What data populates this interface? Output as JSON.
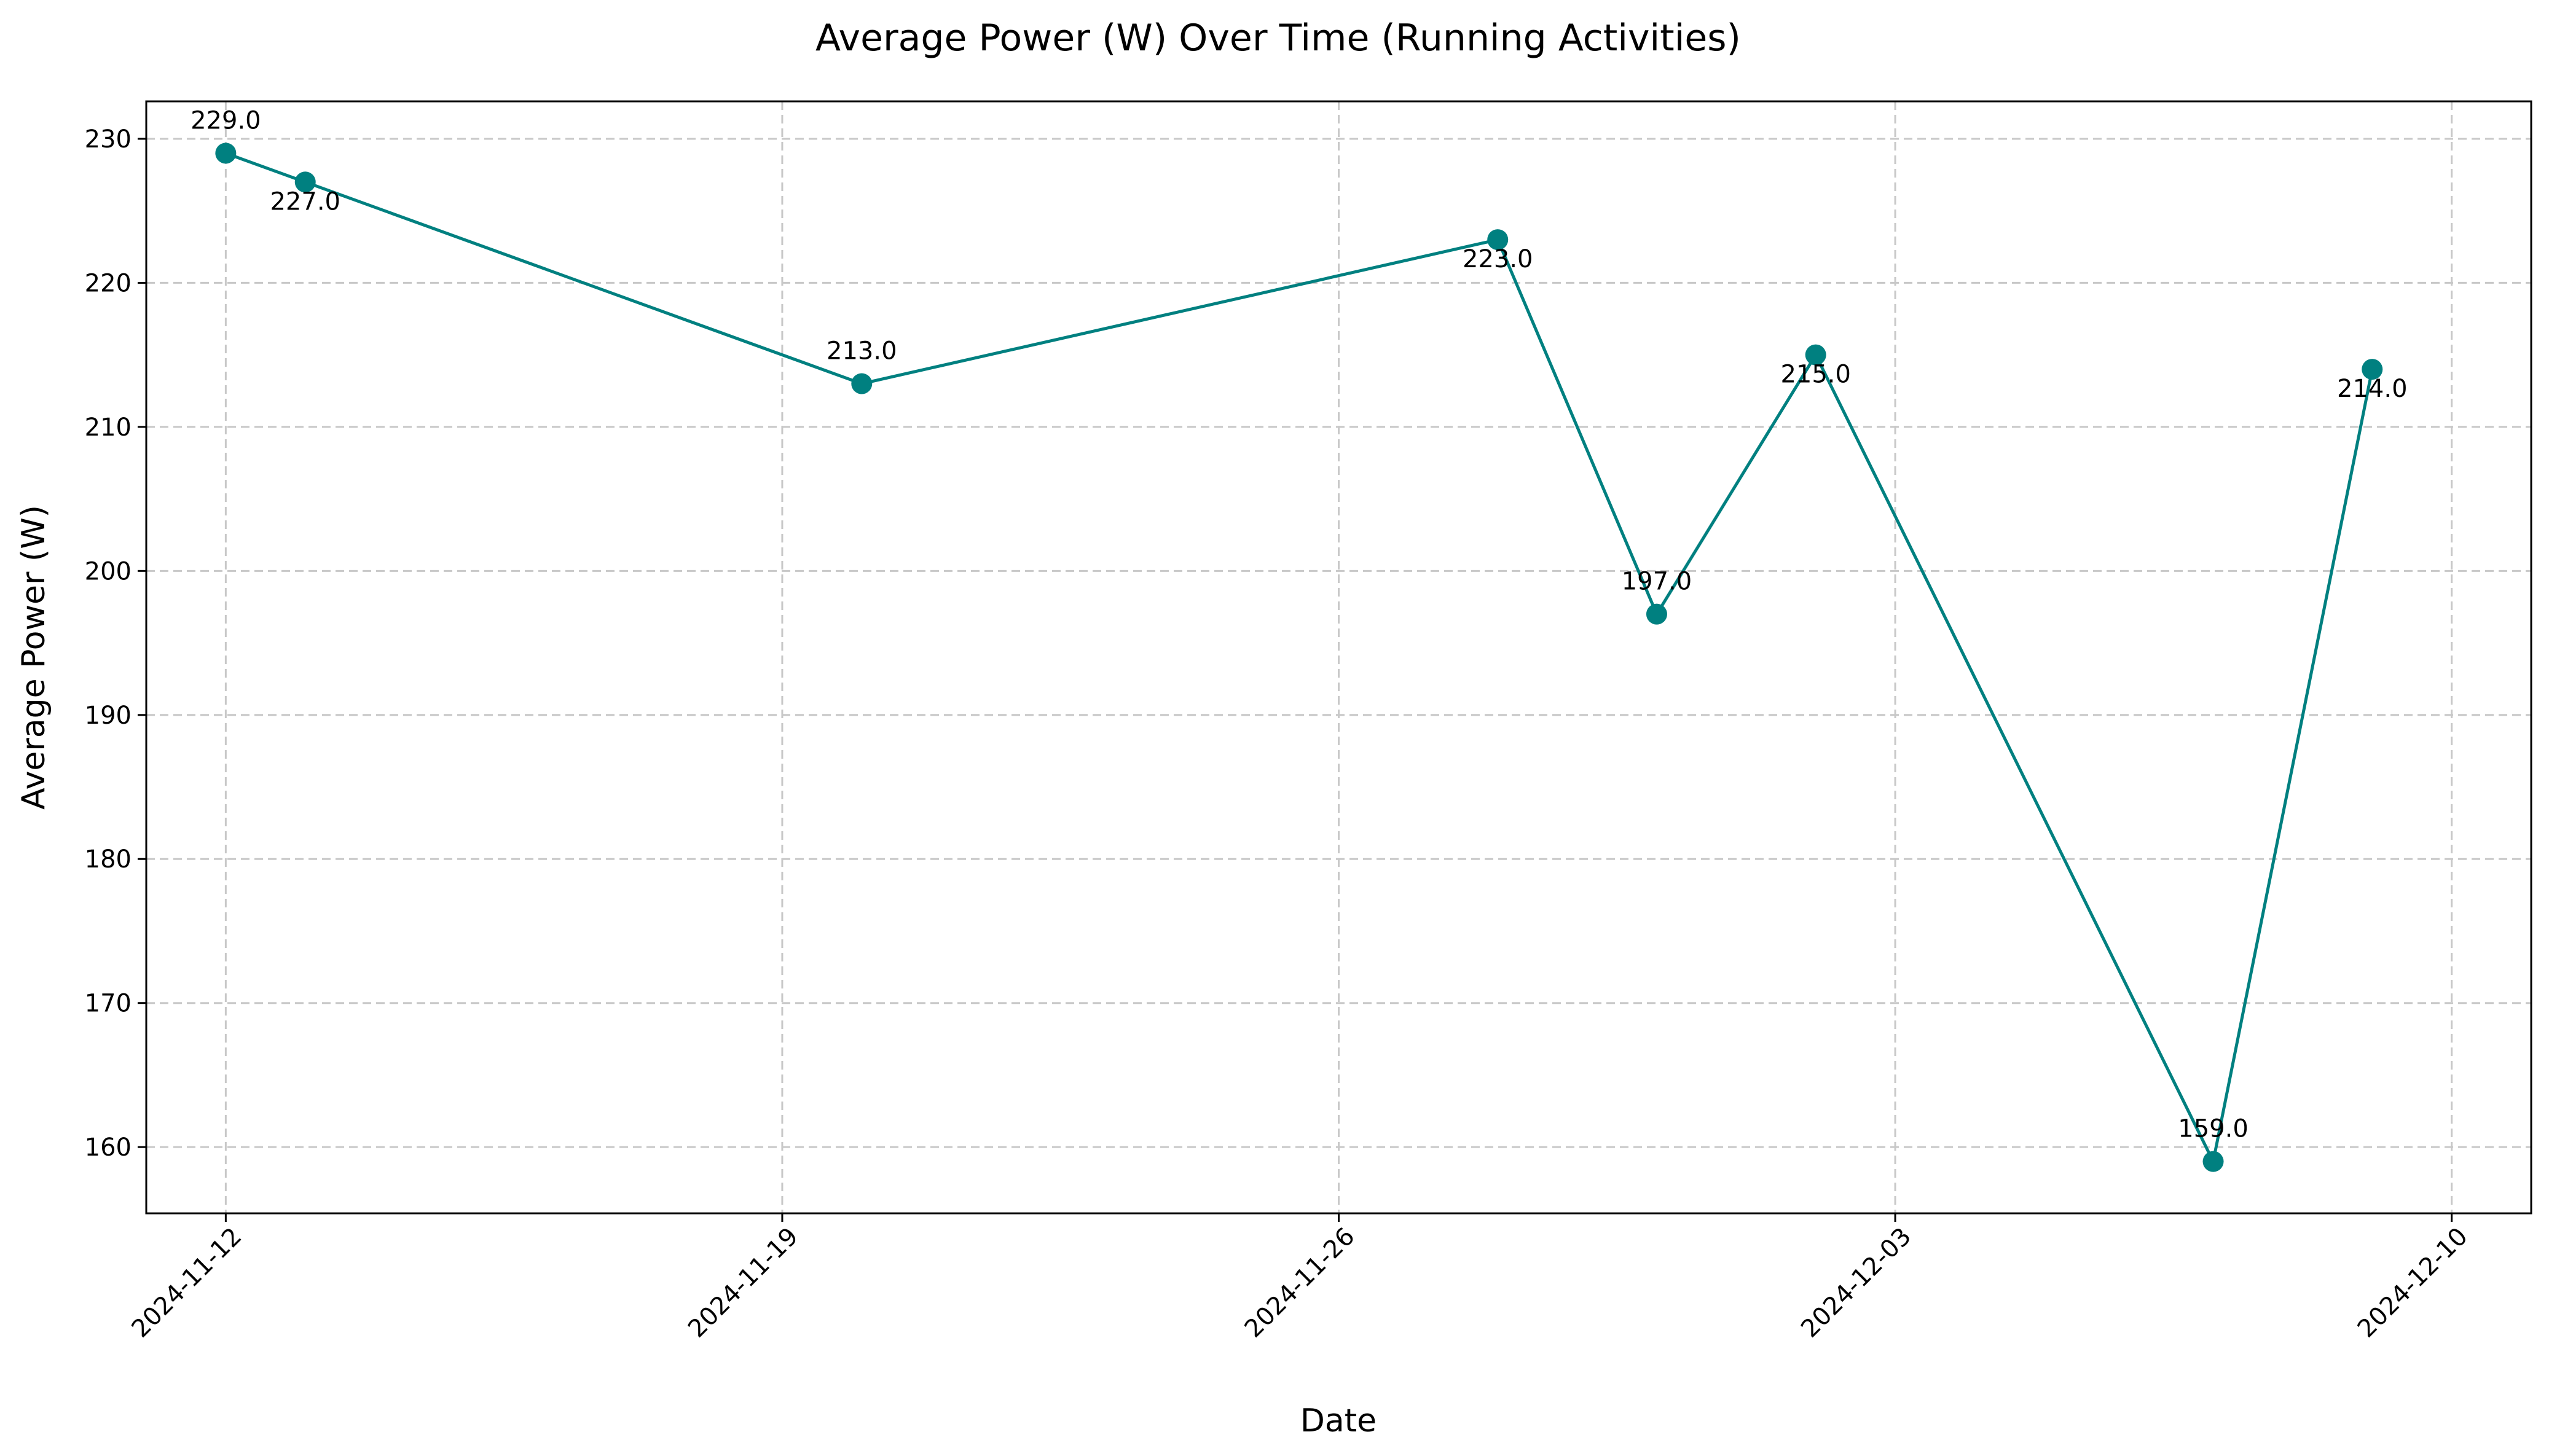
{
  "chart_data": {
    "type": "line",
    "title": "Average Power (W) Over Time (Running Activities)",
    "xlabel": "Date",
    "ylabel": "Average Power (W)",
    "x_ticks": [
      "2024-11-12",
      "2024-11-19",
      "2024-11-26",
      "2024-12-03",
      "2024-12-10"
    ],
    "y_ticks": [
      160,
      170,
      180,
      190,
      200,
      210,
      220,
      230
    ],
    "ylim": [
      155.4,
      232.6
    ],
    "xlim": [
      "2024-11-11",
      "2024-12-11"
    ],
    "grid": true,
    "colors": {
      "line": "#008080",
      "marker": "#008080"
    },
    "series": [
      {
        "points": [
          {
            "date": "2024-11-12",
            "value": 229,
            "label": "229.0"
          },
          {
            "date": "2024-11-13",
            "value": 227,
            "label": "227.0"
          },
          {
            "date": "2024-11-20",
            "value": 213,
            "label": "213.0"
          },
          {
            "date": "2024-11-28",
            "value": 223,
            "label": "223.0"
          },
          {
            "date": "2024-11-30",
            "value": 197,
            "label": "197.0"
          },
          {
            "date": "2024-12-02",
            "value": 215,
            "label": "215.0"
          },
          {
            "date": "2024-12-07",
            "value": 159,
            "label": "159.0"
          },
          {
            "date": "2024-12-09",
            "value": 214,
            "label": "214.0"
          }
        ]
      }
    ]
  }
}
